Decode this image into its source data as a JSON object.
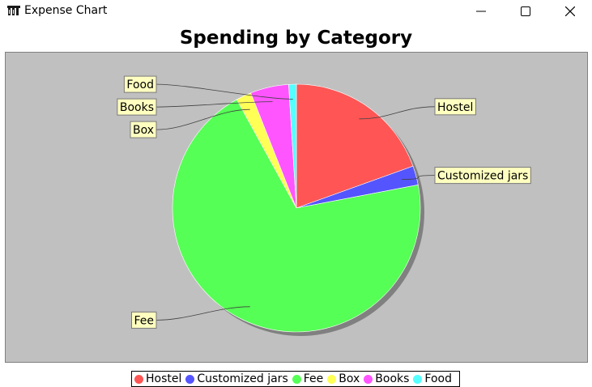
{
  "window": {
    "title": "Expense Chart",
    "icon": "java-app-icon",
    "controls": [
      "minimize-icon",
      "maximize-icon",
      "close-icon"
    ]
  },
  "chart_data": {
    "type": "pie",
    "title": "Spending by Category",
    "categories": [
      "Hostel",
      "Customized jars",
      "Fee",
      "Box",
      "Books",
      "Food"
    ],
    "values": [
      19.5,
      2.5,
      70.0,
      2.0,
      5.0,
      1.0
    ],
    "colors": [
      "#ff5555",
      "#5555ff",
      "#55ff55",
      "#ffff55",
      "#ff55ff",
      "#55ffff"
    ],
    "plot_background": "#c0c0c0",
    "label_background": "#ffffc0",
    "legend": "bottom",
    "start_angle_deg": 90,
    "direction": "clockwise"
  }
}
